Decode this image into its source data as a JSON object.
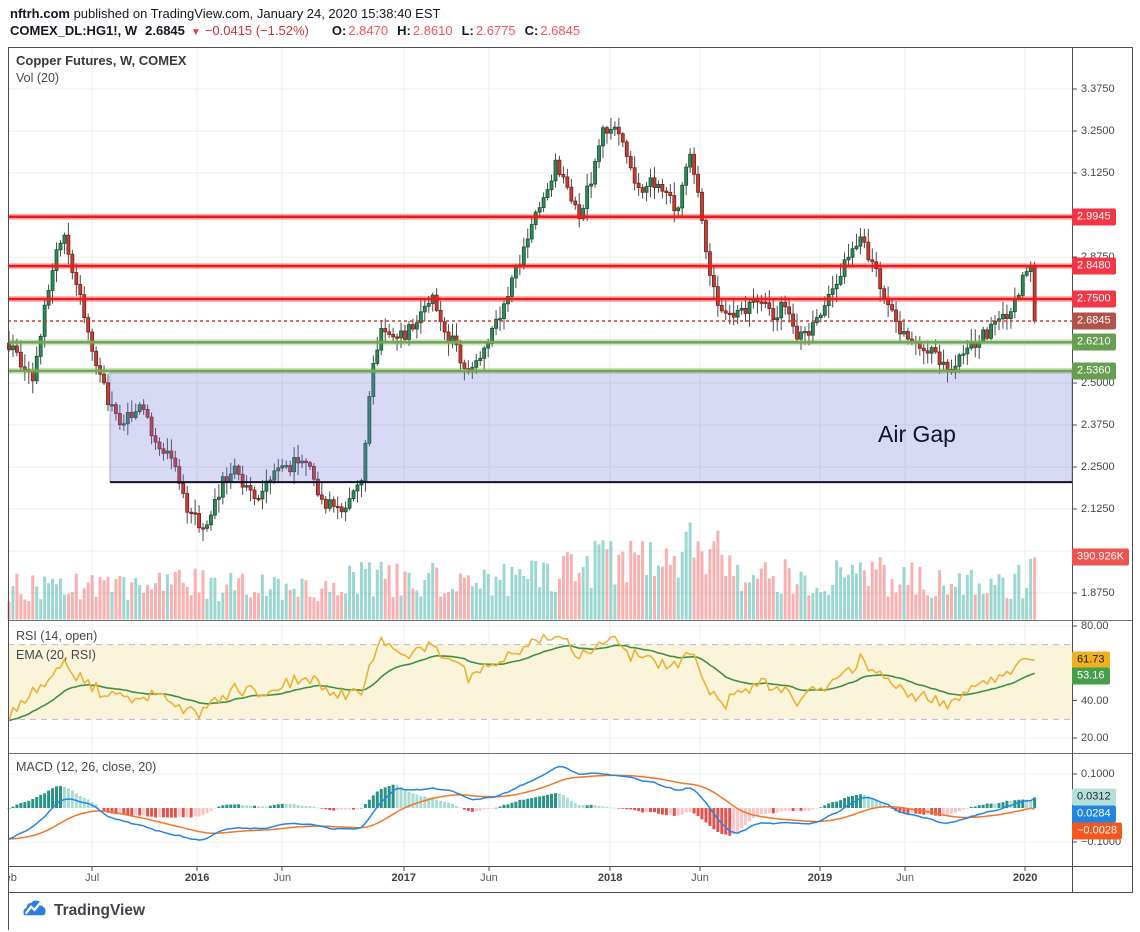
{
  "header": {
    "site": "nftrh.com",
    "published": " published on TradingView.com, January 24, 2020 15:38:40 EST",
    "symbol": "COMEX_DL:HG1!, W",
    "last_price": "2.6845",
    "direction": "▼",
    "change": "−0.0415 (−1.52%)",
    "ohlc": [
      {
        "label": "O:",
        "value": "2.8470"
      },
      {
        "label": "H:",
        "value": "2.8610"
      },
      {
        "label": "L:",
        "value": "2.6775"
      },
      {
        "label": "C:",
        "value": "2.6845"
      }
    ]
  },
  "panes": {
    "main": {
      "title": "Copper Futures, W, COMEX",
      "vol_label": "Vol (20)"
    },
    "rsi": {
      "label_rsi": "RSI (14, open)",
      "label_ema": "EMA (20, RSI)"
    },
    "macd": {
      "label": "MACD (12, 26, close, 20)"
    }
  },
  "annotations": {
    "air_gap": "Air Gap"
  },
  "footer": {
    "brand": "TradingView"
  },
  "chart_data": [
    {
      "type": "candlestick",
      "title": "Copper Futures, W, COMEX",
      "timeframe": "W",
      "weeks": 260,
      "x_range": [
        "Feb 2015",
        "Jan 2020"
      ],
      "ylim": [
        1.8,
        3.45
      ],
      "y_ticks_visible": [
        "3.3750",
        "3.2500",
        "3.1250",
        "2.8750",
        "2.5000",
        "2.3750",
        "2.2500",
        "2.1250",
        "1.8750"
      ],
      "grid_prices": [
        3.375,
        3.25,
        3.125,
        3.0,
        2.875,
        2.75,
        2.625,
        2.5,
        2.375,
        2.25,
        2.125,
        2.0,
        1.875
      ],
      "colors": {
        "up_fill": "#31885a",
        "up_border": "#11532f",
        "down_fill": "#c04036",
        "down_border": "#7e1d18",
        "wick": "#4a4a4a"
      },
      "last_candle": {
        "open": 2.847,
        "high": 2.861,
        "low": 2.6775,
        "close": 2.6845
      },
      "close_path_anchors": [
        [
          0,
          2.62
        ],
        [
          3,
          2.56
        ],
        [
          6,
          2.5
        ],
        [
          9,
          2.72
        ],
        [
          12,
          2.9
        ],
        [
          14,
          2.93
        ],
        [
          17,
          2.8
        ],
        [
          20,
          2.66
        ],
        [
          23,
          2.52
        ],
        [
          26,
          2.42
        ],
        [
          29,
          2.38
        ],
        [
          33,
          2.45
        ],
        [
          36,
          2.36
        ],
        [
          39,
          2.3
        ],
        [
          42,
          2.24
        ],
        [
          45,
          2.12
        ],
        [
          48,
          2.08
        ],
        [
          51,
          2.1
        ],
        [
          54,
          2.2
        ],
        [
          57,
          2.26
        ],
        [
          60,
          2.18
        ],
        [
          63,
          2.15
        ],
        [
          66,
          2.22
        ],
        [
          70,
          2.24
        ],
        [
          73,
          2.28
        ],
        [
          76,
          2.24
        ],
        [
          79,
          2.16
        ],
        [
          82,
          2.12
        ],
        [
          85,
          2.14
        ],
        [
          89,
          2.22
        ],
        [
          92,
          2.55
        ],
        [
          94,
          2.68
        ],
        [
          97,
          2.62
        ],
        [
          101,
          2.66
        ],
        [
          104,
          2.7
        ],
        [
          107,
          2.76
        ],
        [
          110,
          2.66
        ],
        [
          113,
          2.6
        ],
        [
          116,
          2.54
        ],
        [
          119,
          2.58
        ],
        [
          123,
          2.68
        ],
        [
          126,
          2.76
        ],
        [
          129,
          2.86
        ],
        [
          132,
          2.96
        ],
        [
          135,
          3.05
        ],
        [
          138,
          3.16
        ],
        [
          141,
          3.08
        ],
        [
          144,
          3.0
        ],
        [
          147,
          3.1
        ],
        [
          150,
          3.24
        ],
        [
          153,
          3.26
        ],
        [
          156,
          3.18
        ],
        [
          159,
          3.08
        ],
        [
          162,
          3.1
        ],
        [
          166,
          3.05
        ],
        [
          169,
          3.02
        ],
        [
          172,
          3.2
        ],
        [
          174,
          3.08
        ],
        [
          177,
          2.82
        ],
        [
          180,
          2.7
        ],
        [
          183,
          2.68
        ],
        [
          187,
          2.74
        ],
        [
          190,
          2.76
        ],
        [
          193,
          2.7
        ],
        [
          196,
          2.74
        ],
        [
          199,
          2.64
        ],
        [
          202,
          2.63
        ],
        [
          205,
          2.72
        ],
        [
          209,
          2.8
        ],
        [
          212,
          2.88
        ],
        [
          215,
          2.94
        ],
        [
          218,
          2.85
        ],
        [
          221,
          2.76
        ],
        [
          224,
          2.68
        ],
        [
          227,
          2.64
        ],
        [
          230,
          2.62
        ],
        [
          234,
          2.58
        ],
        [
          237,
          2.52
        ],
        [
          240,
          2.58
        ],
        [
          243,
          2.62
        ],
        [
          246,
          2.64
        ],
        [
          250,
          2.68
        ],
        [
          253,
          2.73
        ],
        [
          256,
          2.8
        ],
        [
          258,
          2.85
        ],
        [
          259,
          2.6845
        ]
      ],
      "levels": [
        {
          "price": 2.9945,
          "label": "2.9945",
          "color": "#f21818",
          "badge": "#f23645",
          "style": "solid"
        },
        {
          "price": 2.848,
          "label": "2.8480",
          "color": "#f21818",
          "badge": "#f23645",
          "style": "solid"
        },
        {
          "price": 2.75,
          "label": "2.7500",
          "color": "#f21818",
          "badge": "#f23645",
          "style": "solid"
        },
        {
          "price": 2.6845,
          "label": "2.6845",
          "color": "#d03b2f",
          "badge": "#b0544b",
          "style": "dotted"
        },
        {
          "price": 2.621,
          "label": "2.6210",
          "color": "#72a854",
          "badge": "#689e52",
          "style": "solid"
        },
        {
          "price": 2.536,
          "label": "2.5360",
          "color": "#72a854",
          "badge": "#689e52",
          "style": "solid"
        }
      ],
      "air_gap": {
        "label": "Air Gap",
        "price_top": 2.533,
        "price_bottom": 2.205,
        "week_start": 25.5,
        "extends_to_right_edge": true
      },
      "x_ticks": [
        {
          "label": "Feb",
          "week": -0.4,
          "bold": false
        },
        {
          "label": "Jul",
          "week": 21,
          "bold": false
        },
        {
          "label": "2016",
          "week": 47.5,
          "bold": true
        },
        {
          "label": "Jun",
          "week": 69,
          "bold": false
        },
        {
          "label": "2017",
          "week": 99.7,
          "bold": true
        },
        {
          "label": "Jun",
          "week": 121.2,
          "bold": false
        },
        {
          "label": "2018",
          "week": 151.8,
          "bold": true
        },
        {
          "label": "Jun",
          "week": 174.5,
          "bold": false
        },
        {
          "label": "2019",
          "week": 204.8,
          "bold": true
        },
        {
          "label": "Jun",
          "week": 226.3,
          "bold": false
        },
        {
          "label": "2020",
          "week": 256.6,
          "bold": true
        }
      ]
    },
    {
      "type": "bar",
      "name": "Vol (20)",
      "units": "K",
      "last_value": "390.926K",
      "last_value_k": 390.926,
      "badge_color": "#ef5350",
      "up_color": "rgba(38,166,154,0.45)",
      "down_color": "rgba(239,83,80,0.45)",
      "envelope_anchors_k": [
        [
          0,
          290
        ],
        [
          20,
          310
        ],
        [
          48,
          330
        ],
        [
          72,
          270
        ],
        [
          92,
          390
        ],
        [
          113,
          350
        ],
        [
          130,
          430
        ],
        [
          143,
          500
        ],
        [
          153,
          550
        ],
        [
          164,
          500
        ],
        [
          175,
          680
        ],
        [
          184,
          440
        ],
        [
          199,
          390
        ],
        [
          215,
          420
        ],
        [
          228,
          360
        ],
        [
          237,
          330
        ],
        [
          250,
          330
        ],
        [
          259,
          391
        ]
      ]
    },
    {
      "type": "line",
      "name": "RSI (14, open)",
      "ylim": [
        15,
        85
      ],
      "y_ticks_visible": [
        "80.00",
        "40.00",
        "20.00"
      ],
      "band": [
        70,
        30
      ],
      "band_color": "#faf4da",
      "series": [
        {
          "name": "RSI",
          "color": "#edb233",
          "current": 61.73,
          "badge": {
            "bg": "#eeb01f",
            "fg": "#1c1c1c"
          },
          "anchors": [
            [
              0,
              32
            ],
            [
              6,
              45
            ],
            [
              12,
              56
            ],
            [
              14,
              60
            ],
            [
              17,
              54
            ],
            [
              23,
              45
            ],
            [
              29,
              40
            ],
            [
              36,
              44
            ],
            [
              42,
              37
            ],
            [
              48,
              33
            ],
            [
              57,
              46
            ],
            [
              63,
              44
            ],
            [
              70,
              50
            ],
            [
              76,
              52
            ],
            [
              82,
              42
            ],
            [
              89,
              46
            ],
            [
              94,
              72
            ],
            [
              98,
              64
            ],
            [
              104,
              67
            ],
            [
              107,
              70
            ],
            [
              113,
              60
            ],
            [
              116,
              52
            ],
            [
              123,
              62
            ],
            [
              129,
              68
            ],
            [
              135,
              73
            ],
            [
              139,
              77
            ],
            [
              144,
              63
            ],
            [
              150,
              71
            ],
            [
              153,
              73
            ],
            [
              156,
              65
            ],
            [
              162,
              62
            ],
            [
              169,
              57
            ],
            [
              172,
              66
            ],
            [
              177,
              46
            ],
            [
              180,
              37
            ],
            [
              186,
              46
            ],
            [
              190,
              50
            ],
            [
              196,
              45
            ],
            [
              199,
              40
            ],
            [
              205,
              47
            ],
            [
              212,
              55
            ],
            [
              215,
              62
            ],
            [
              221,
              52
            ],
            [
              227,
              44
            ],
            [
              234,
              40
            ],
            [
              237,
              36
            ],
            [
              243,
              46
            ],
            [
              250,
              52
            ],
            [
              253,
              55
            ],
            [
              257,
              62
            ],
            [
              259,
              61.73
            ]
          ]
        },
        {
          "name": "EMA 20 of RSI",
          "color": "#3f9142",
          "current": 53.16,
          "badge": {
            "bg": "#459f4a",
            "fg": "#ffffff"
          },
          "derived": "ema20"
        }
      ]
    },
    {
      "type": "line+histogram",
      "name": "MACD (12, 26, close, 20)",
      "y_ticks_visible": [
        "0.1000",
        "−0.1000"
      ],
      "current": {
        "histogram": 0.0312,
        "macd": 0.0284,
        "signal": -0.0028
      },
      "badges": [
        {
          "value": "0.0312",
          "bg": "#b7dfd9",
          "fg": "#16262b"
        },
        {
          "value": "0.0284",
          "bg": "#2186e0",
          "fg": "#ffffff"
        },
        {
          "value": "−0.0028",
          "bg": "#f4581f",
          "fg": "#ffffff"
        }
      ],
      "colors": {
        "macd_line": "#2486e3",
        "signal_line": "#f2752a",
        "hist_up_grow": "#2a9387",
        "hist_up_fall": "#aadcd3",
        "hist_down_fall": "#e0524e",
        "hist_down_grow": "#f9c6c9"
      },
      "macd_anchors": [
        [
          0,
          -0.095
        ],
        [
          6,
          -0.06
        ],
        [
          12,
          0.015
        ],
        [
          14,
          0.027
        ],
        [
          20,
          0.012
        ],
        [
          26,
          -0.03
        ],
        [
          33,
          -0.05
        ],
        [
          39,
          -0.072
        ],
        [
          48,
          -0.096
        ],
        [
          57,
          -0.055
        ],
        [
          63,
          -0.065
        ],
        [
          70,
          -0.05
        ],
        [
          76,
          -0.045
        ],
        [
          82,
          -0.065
        ],
        [
          89,
          -0.058
        ],
        [
          94,
          0.02
        ],
        [
          98,
          0.058
        ],
        [
          104,
          0.05
        ],
        [
          107,
          0.06
        ],
        [
          113,
          0.047
        ],
        [
          116,
          0.025
        ],
        [
          123,
          0.03
        ],
        [
          129,
          0.065
        ],
        [
          135,
          0.1
        ],
        [
          139,
          0.123
        ],
        [
          144,
          0.1
        ],
        [
          150,
          0.104
        ],
        [
          153,
          0.1
        ],
        [
          162,
          0.075
        ],
        [
          169,
          0.05
        ],
        [
          172,
          0.06
        ],
        [
          177,
          0.005
        ],
        [
          180,
          -0.05
        ],
        [
          183,
          -0.078
        ],
        [
          190,
          -0.042
        ],
        [
          196,
          -0.045
        ],
        [
          202,
          -0.05
        ],
        [
          208,
          -0.02
        ],
        [
          215,
          0.026
        ],
        [
          218,
          0.03
        ],
        [
          224,
          -0.004
        ],
        [
          230,
          -0.026
        ],
        [
          237,
          -0.047
        ],
        [
          243,
          -0.026
        ],
        [
          250,
          -0.004
        ],
        [
          254,
          0.014
        ],
        [
          259,
          0.0284
        ]
      ]
    }
  ]
}
